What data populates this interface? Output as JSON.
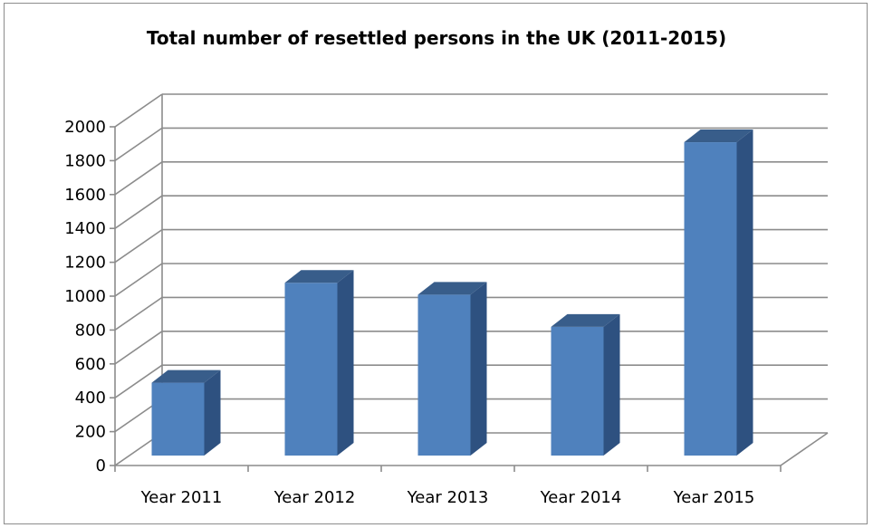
{
  "chart_data": {
    "type": "bar",
    "title": "Total number of resettled persons in the UK (2011-2015)",
    "categories": [
      "Year 2011",
      "Year 2012",
      "Year 2013",
      "Year 2014",
      "Year 2015"
    ],
    "values": [
      430,
      1020,
      950,
      760,
      1850
    ],
    "ylim": [
      0,
      2000
    ],
    "yticks": [
      0,
      200,
      400,
      600,
      800,
      1000,
      1200,
      1400,
      1600,
      1800,
      2000
    ],
    "grid": true,
    "style": "3d-column",
    "colors": {
      "bar_front": "#4f81bd",
      "bar_side": "#2e5180",
      "bar_top": "#385d8a",
      "gridline": "#8c8c8c",
      "axis": "#8c8c8c"
    }
  }
}
